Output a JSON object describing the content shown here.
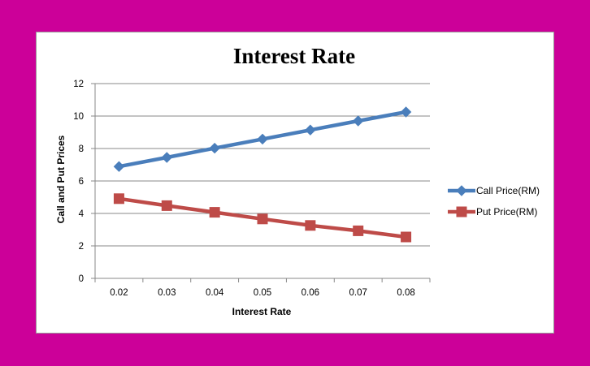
{
  "chart_data": {
    "type": "line",
    "title": "Interest Rate",
    "xlabel": "Interest Rate",
    "ylabel": "Call and Put Prices",
    "categories": [
      "0.02",
      "0.03",
      "0.04",
      "0.05",
      "0.06",
      "0.07",
      "0.08"
    ],
    "ylim": [
      0,
      12
    ],
    "yticks": [
      "0",
      "2",
      "4",
      "6",
      "8",
      "10",
      "12"
    ],
    "grid": true,
    "legend_position": "right",
    "series": [
      {
        "name": "Call Price(RM)",
        "values": [
          6.89,
          7.45,
          8.02,
          8.58,
          9.14,
          9.7,
          10.25
        ],
        "color": "#4a7ebb",
        "marker": "diamond"
      },
      {
        "name": "Put Price(RM)",
        "values": [
          4.91,
          4.48,
          4.07,
          3.66,
          3.26,
          2.93,
          2.55
        ],
        "color": "#be4b48",
        "marker": "square"
      }
    ]
  }
}
